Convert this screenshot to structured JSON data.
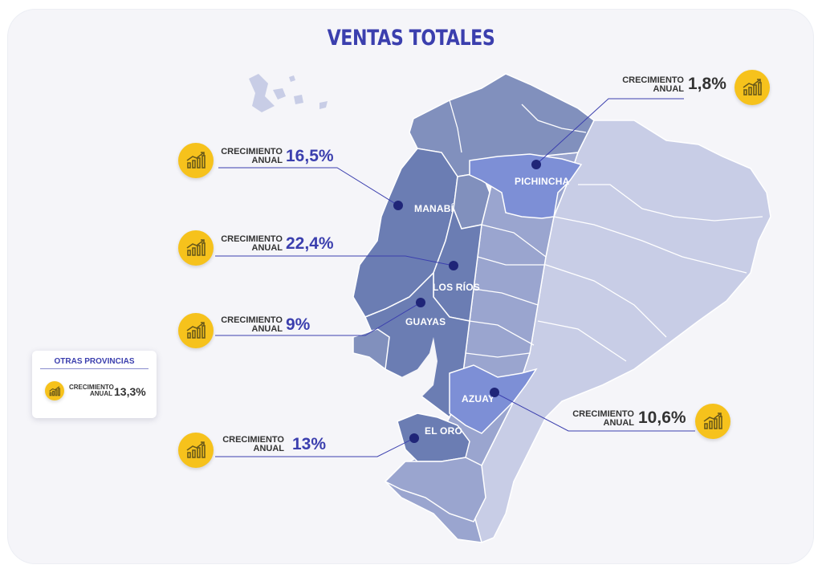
{
  "title": "VENTAS TOTALES",
  "colors": {
    "accent": "#3b3fae",
    "coin": "#f6c21c",
    "region_dark": "#6b7db3",
    "region_mid": "#9aa5cf",
    "region_light": "#c8cde6",
    "highlight": "#7d8fd6"
  },
  "icon": "bar-chart-growth-icon",
  "callouts": [
    {
      "id": "manabi",
      "label1": "CRECIMIENTO",
      "label2": "ANUAL",
      "value": "16,5%"
    },
    {
      "id": "losrios",
      "label1": "CRECIMIENTO",
      "label2": "ANUAL",
      "value": "22,4%"
    },
    {
      "id": "guayas",
      "label1": "CRECIMIENTO",
      "label2": "ANUAL",
      "value": "9%"
    },
    {
      "id": "eloro",
      "label1": "CRECIMIENTO",
      "label2": "ANUAL",
      "value": "13%"
    },
    {
      "id": "pichincha",
      "label1": "CRECIMIENTO",
      "label2": "ANUAL",
      "value": "1,8%"
    },
    {
      "id": "azuay",
      "label1": "CRECIMIENTO",
      "label2": "ANUAL",
      "value": "10,6%"
    }
  ],
  "provinces": {
    "manabi": "MANABÍ",
    "losrios": "LOS RÍOS",
    "guayas": "GUAYAS",
    "eloro": "EL ORO",
    "pichincha": "PICHINCHA",
    "azuay": "AZUAY"
  },
  "others": {
    "title": "OTRAS PROVINCIAS",
    "label1": "CRECIMIENTO",
    "label2": "ANUAL",
    "value": "13,3%"
  }
}
